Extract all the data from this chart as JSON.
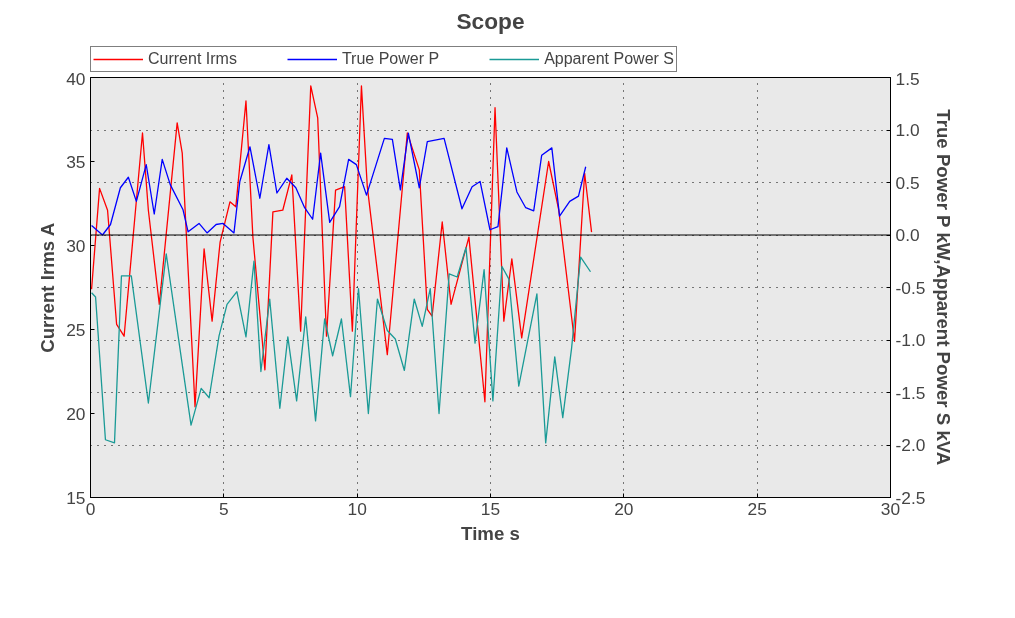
{
  "chart_data": {
    "type": "line",
    "title": "Scope",
    "xlabel": "Time s",
    "ylabel": "Current Irms A",
    "y2label": "True Power P kW,Apparent Power S kVA",
    "xlim": [
      0,
      30
    ],
    "xticks": [
      0,
      5,
      10,
      15,
      20,
      25,
      30
    ],
    "ylim": [
      15,
      40
    ],
    "yticks": [
      15,
      20,
      25,
      30,
      35,
      40
    ],
    "y2lim": [
      -2.5,
      1.5
    ],
    "y2ticks": [
      -2.5,
      {
        "value": -2,
        "label": "-2.0"
      },
      -1.5,
      {
        "value": -1,
        "label": "-1.0"
      },
      -0.5,
      {
        "value": 0,
        "label": "0.0"
      },
      0.5,
      {
        "value": 1,
        "label": "1.0"
      },
      1.5
    ],
    "grid": true,
    "legend": "top",
    "marker": "none",
    "line_style": "solid",
    "ref_lines": [
      {
        "axis": "y2",
        "value": 0,
        "color": "#000000"
      }
    ],
    "series": [
      {
        "name": "Current Irms",
        "color": "#ff0000",
        "x": [
          0.04,
          0.34,
          0.64,
          0.98,
          1.26,
          1.95,
          2.17,
          2.58,
          3.25,
          3.44,
          3.92,
          4.26,
          4.56,
          4.86,
          5.23,
          5.45,
          5.83,
          6.09,
          6.54,
          6.84,
          7.21,
          7.55,
          7.88,
          8.26,
          8.52,
          8.85,
          9.19,
          9.53,
          9.82,
          10.16,
          10.38,
          11.13,
          11.88,
          12.33,
          12.63,
          12.81,
          13.19,
          13.52,
          14.19,
          14.79,
          15.17,
          15.5,
          15.8,
          16.17,
          17.18,
          17.56,
          18.15,
          18.53,
          18.79
        ],
        "values": [
          27.4,
          33.4,
          32.1,
          25.3,
          24.6,
          36.7,
          32.1,
          26.5,
          37.3,
          35.5,
          20.4,
          29.8,
          25.5,
          30.2,
          32.6,
          32.3,
          38.6,
          30.5,
          22.6,
          32.0,
          32.1,
          34.2,
          24.9,
          39.5,
          37.6,
          24.6,
          33.3,
          33.5,
          24.9,
          39.5,
          33.5,
          23.5,
          36.7,
          34.5,
          26.2,
          25.8,
          31.4,
          26.5,
          30.5,
          20.7,
          38.2,
          25.5,
          29.2,
          24.5,
          35.0,
          32.1,
          24.3,
          34.3,
          30.8
        ]
      },
      {
        "name": "True Power P",
        "color": "#0000ff",
        "axis": "y2",
        "x": [
          0.04,
          0.45,
          0.75,
          1.12,
          1.42,
          1.72,
          2.09,
          2.39,
          2.69,
          2.99,
          3.47,
          3.66,
          4.07,
          4.37,
          4.71,
          4.97,
          5.38,
          5.6,
          5.98,
          6.35,
          6.69,
          6.99,
          7.36,
          7.7,
          8.03,
          8.33,
          8.63,
          8.97,
          9.34,
          9.68,
          9.97,
          10.35,
          11.02,
          11.32,
          11.62,
          11.92,
          12.33,
          12.63,
          13.26,
          13.93,
          14.31,
          14.61,
          14.98,
          15.28,
          15.61,
          15.99,
          16.32,
          16.62,
          16.92,
          17.3,
          17.59,
          17.97,
          18.3,
          18.57
        ],
        "values": [
          0.09,
          0.0,
          0.1,
          0.45,
          0.55,
          0.32,
          0.67,
          0.2,
          0.72,
          0.48,
          0.24,
          0.03,
          0.11,
          0.02,
          0.1,
          0.11,
          0.02,
          0.51,
          0.84,
          0.35,
          0.86,
          0.4,
          0.54,
          0.45,
          0.26,
          0.15,
          0.78,
          0.12,
          0.27,
          0.72,
          0.67,
          0.38,
          0.92,
          0.91,
          0.43,
          0.97,
          0.45,
          0.89,
          0.92,
          0.25,
          0.46,
          0.51,
          0.05,
          0.08,
          0.83,
          0.41,
          0.26,
          0.23,
          0.76,
          0.83,
          0.18,
          0.32,
          0.37,
          0.65
        ]
      },
      {
        "name": "Apparent Power S",
        "color": "#1a9a96",
        "axis": "y2",
        "x": [
          0.04,
          0.19,
          0.56,
          0.9,
          1.16,
          1.53,
          2.17,
          2.84,
          3.77,
          4.15,
          4.45,
          4.82,
          5.12,
          5.49,
          5.83,
          6.13,
          6.39,
          6.72,
          7.1,
          7.4,
          7.73,
          8.07,
          8.44,
          8.78,
          9.08,
          9.41,
          9.75,
          10.05,
          10.42,
          10.76,
          11.13,
          11.43,
          11.77,
          12.14,
          12.44,
          12.74,
          13.07,
          13.45,
          13.75,
          14.08,
          14.42,
          14.76,
          15.09,
          15.43,
          15.69,
          16.06,
          16.74,
          17.07,
          17.41,
          17.71,
          18.04,
          18.38,
          18.75
        ],
        "values": [
          -0.55,
          -0.59,
          -1.95,
          -1.98,
          -0.39,
          -0.39,
          -1.6,
          -0.18,
          -1.81,
          -1.46,
          -1.55,
          -0.96,
          -0.66,
          -0.54,
          -0.97,
          -0.25,
          -1.3,
          -0.61,
          -1.65,
          -0.97,
          -1.58,
          -0.78,
          -1.77,
          -0.8,
          -1.15,
          -0.8,
          -1.54,
          -0.51,
          -1.7,
          -0.61,
          -0.91,
          -0.99,
          -1.29,
          -0.61,
          -0.87,
          -0.51,
          -1.7,
          -0.37,
          -0.4,
          -0.12,
          -1.03,
          -0.33,
          -1.58,
          -0.3,
          -0.42,
          -1.44,
          -0.56,
          -1.98,
          -1.16,
          -1.74,
          -1.08,
          -0.21,
          -0.35
        ]
      }
    ]
  }
}
